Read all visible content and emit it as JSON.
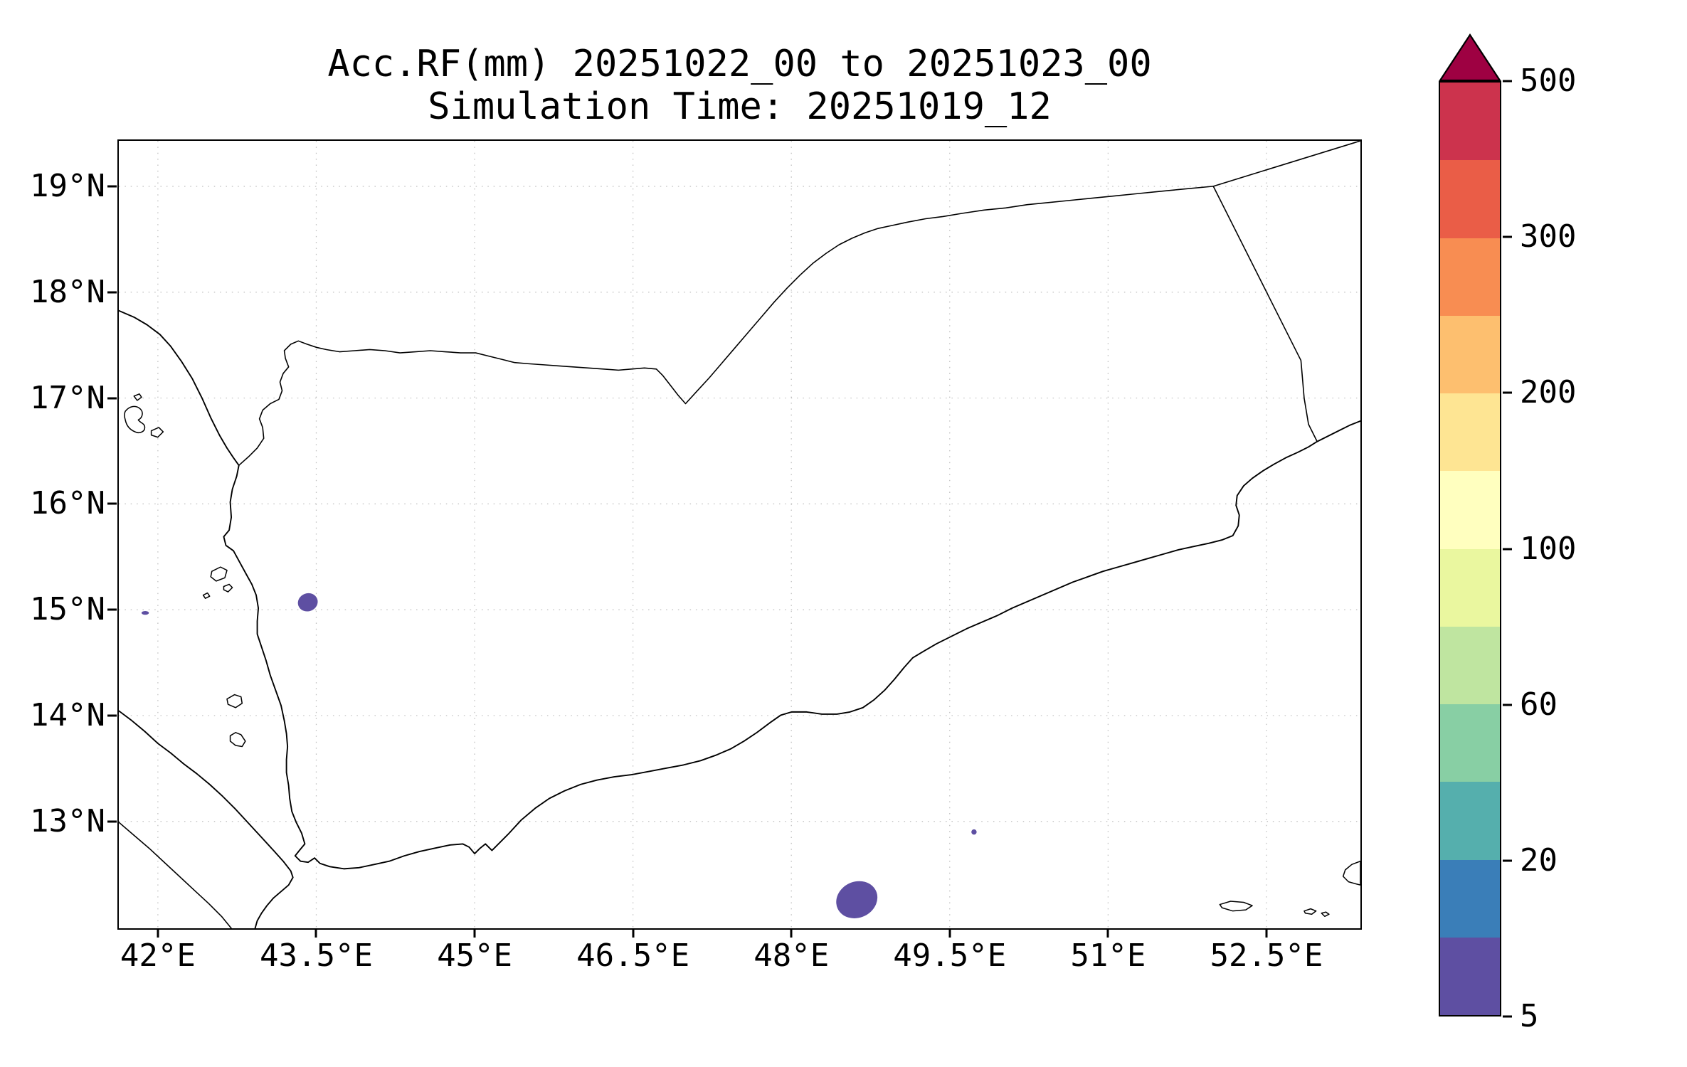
{
  "page": {
    "background": "#ffffff"
  },
  "chart_data": {
    "type": "heatmap",
    "title": "Acc.RF(mm) 20251022_00 to 20251023_00",
    "subtitle": "Simulation Time: 20251019_12",
    "grid": "dotted",
    "legend_position": "right-colorbar",
    "x_axis": {
      "tick_labels": [
        "42°E",
        "43.5°E",
        "45°E",
        "46.5°E",
        "48°E",
        "49.5°E",
        "51°E",
        "52.5°E"
      ],
      "tick_values": [
        42,
        43.5,
        45,
        46.5,
        48,
        49.5,
        51,
        52.5
      ],
      "range": [
        41.63,
        53.39
      ]
    },
    "y_axis": {
      "tick_labels": [
        "19°N",
        "18°N",
        "17°N",
        "16°N",
        "15°N",
        "14°N",
        "13°N"
      ],
      "tick_values": [
        19,
        18,
        17,
        16,
        15,
        14,
        13
      ],
      "range": [
        11.99,
        19.43
      ]
    },
    "colorbar": {
      "extend": "max",
      "levels": [
        5,
        10,
        20,
        40,
        60,
        80,
        100,
        150,
        200,
        250,
        300,
        400,
        500
      ],
      "tick_labels": [
        "5",
        "20",
        "60",
        "100",
        "200",
        "300",
        "500"
      ],
      "tick_values": [
        5,
        20,
        60,
        100,
        200,
        300,
        500
      ],
      "colors": [
        "#5e4fa2",
        "#3a7eb8",
        "#55afad",
        "#88cfa4",
        "#bfe5a0",
        "#eaf79f",
        "#ffffbf",
        "#fee593",
        "#fdbf6f",
        "#f88d52",
        "#ea5d47",
        "#cc334d"
      ],
      "over_color": "#9e0142"
    },
    "rain_features": [
      {
        "label": "rain-patch-west-yemen",
        "lon": 43.42,
        "lat": 15.07,
        "w_deg": 0.19,
        "h_deg": 0.17,
        "rotation": -20,
        "value": "5-20 mm"
      },
      {
        "label": "rain-patch-gulf-of-aden",
        "lon": 48.62,
        "lat": 12.26,
        "w_deg": 0.4,
        "h_deg": 0.34,
        "rotation": -25,
        "value": "5-20 mm"
      },
      {
        "label": "rain-speck-red-sea",
        "lon": 41.88,
        "lat": 14.97,
        "w_deg": 0.07,
        "h_deg": 0.035,
        "rotation": 0,
        "value": "5-10 mm"
      },
      {
        "label": "rain-speck-gulf-east",
        "lon": 49.73,
        "lat": 12.9,
        "w_deg": 0.05,
        "h_deg": 0.05,
        "rotation": 0,
        "value": "5-10 mm"
      }
    ]
  }
}
